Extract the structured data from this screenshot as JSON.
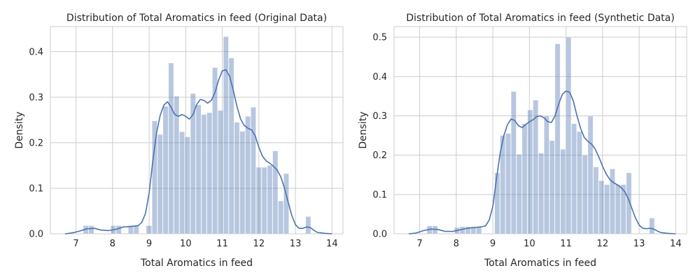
{
  "chart_data": [
    {
      "type": "bar",
      "title": "Distribution of Total Aromatics in feed (Original Data)",
      "xlabel": "Total Aromatics in feed",
      "ylabel": "Density",
      "xlim": [
        6.3,
        14.3
      ],
      "ylim": [
        0,
        0.455
      ],
      "xticks": [
        7,
        8,
        9,
        10,
        11,
        12,
        13,
        14
      ],
      "yticks": [
        0.0,
        0.1,
        0.2,
        0.3,
        0.4
      ],
      "ytick_labels": [
        "0.0",
        "0.1",
        "0.2",
        "0.3",
        "0.4"
      ],
      "grid": true,
      "bar_color": "#4c72b0",
      "bar_opacity": 0.4,
      "line_color": "#4c72b0",
      "bins": [
        {
          "x0": 7.2,
          "x1": 7.35,
          "density": 0.018
        },
        {
          "x0": 7.35,
          "x1": 7.5,
          "density": 0.018
        },
        {
          "x0": 7.95,
          "x1": 8.1,
          "density": 0.018
        },
        {
          "x0": 8.1,
          "x1": 8.25,
          "density": 0.018
        },
        {
          "x0": 8.43,
          "x1": 8.58,
          "density": 0.018
        },
        {
          "x0": 8.58,
          "x1": 8.73,
          "density": 0.018
        },
        {
          "x0": 8.92,
          "x1": 9.08,
          "density": 0.018
        },
        {
          "x0": 9.08,
          "x1": 9.23,
          "density": 0.248
        },
        {
          "x0": 9.23,
          "x1": 9.38,
          "density": 0.218
        },
        {
          "x0": 9.38,
          "x1": 9.53,
          "density": 0.28
        },
        {
          "x0": 9.53,
          "x1": 9.68,
          "density": 0.375
        },
        {
          "x0": 9.68,
          "x1": 9.83,
          "density": 0.302
        },
        {
          "x0": 9.83,
          "x1": 9.98,
          "density": 0.224
        },
        {
          "x0": 9.98,
          "x1": 10.13,
          "density": 0.213
        },
        {
          "x0": 10.13,
          "x1": 10.28,
          "density": 0.308
        },
        {
          "x0": 10.28,
          "x1": 10.43,
          "density": 0.283
        },
        {
          "x0": 10.43,
          "x1": 10.58,
          "density": 0.262
        },
        {
          "x0": 10.58,
          "x1": 10.73,
          "density": 0.266
        },
        {
          "x0": 10.73,
          "x1": 10.88,
          "density": 0.365
        },
        {
          "x0": 10.88,
          "x1": 11.03,
          "density": 0.271
        },
        {
          "x0": 11.03,
          "x1": 11.18,
          "density": 0.433
        },
        {
          "x0": 11.18,
          "x1": 11.33,
          "density": 0.386
        },
        {
          "x0": 11.33,
          "x1": 11.48,
          "density": 0.245
        },
        {
          "x0": 11.48,
          "x1": 11.63,
          "density": 0.225
        },
        {
          "x0": 11.63,
          "x1": 11.78,
          "density": 0.258
        },
        {
          "x0": 11.78,
          "x1": 11.93,
          "density": 0.278
        },
        {
          "x0": 11.93,
          "x1": 12.08,
          "density": 0.146
        },
        {
          "x0": 12.08,
          "x1": 12.23,
          "density": 0.146
        },
        {
          "x0": 12.23,
          "x1": 12.38,
          "density": 0.15
        },
        {
          "x0": 12.38,
          "x1": 12.53,
          "density": 0.182
        },
        {
          "x0": 12.53,
          "x1": 12.68,
          "density": 0.072
        },
        {
          "x0": 12.68,
          "x1": 12.83,
          "density": 0.132
        },
        {
          "x0": 13.28,
          "x1": 13.43,
          "density": 0.038
        }
      ],
      "kde": {
        "x": [
          6.7,
          6.9,
          7.1,
          7.3,
          7.5,
          7.7,
          7.9,
          8.1,
          8.3,
          8.5,
          8.7,
          8.8,
          8.9,
          9.0,
          9.1,
          9.2,
          9.3,
          9.4,
          9.5,
          9.6,
          9.7,
          9.8,
          9.9,
          10.0,
          10.1,
          10.2,
          10.3,
          10.4,
          10.5,
          10.6,
          10.7,
          10.8,
          10.9,
          11.0,
          11.1,
          11.2,
          11.3,
          11.4,
          11.5,
          11.6,
          11.7,
          11.8,
          11.9,
          12.0,
          12.1,
          12.2,
          12.3,
          12.4,
          12.5,
          12.6,
          12.7,
          12.8,
          12.9,
          13.0,
          13.1,
          13.2,
          13.3,
          13.4,
          13.5,
          13.6,
          13.8,
          14.0
        ],
        "y": [
          0.0,
          0.002,
          0.006,
          0.011,
          0.012,
          0.008,
          0.007,
          0.01,
          0.015,
          0.016,
          0.018,
          0.025,
          0.045,
          0.09,
          0.16,
          0.22,
          0.26,
          0.282,
          0.29,
          0.278,
          0.262,
          0.258,
          0.262,
          0.258,
          0.252,
          0.262,
          0.284,
          0.295,
          0.293,
          0.287,
          0.293,
          0.31,
          0.338,
          0.358,
          0.36,
          0.346,
          0.315,
          0.28,
          0.252,
          0.238,
          0.232,
          0.228,
          0.215,
          0.19,
          0.17,
          0.16,
          0.155,
          0.148,
          0.14,
          0.125,
          0.1,
          0.07,
          0.04,
          0.02,
          0.012,
          0.012,
          0.015,
          0.014,
          0.008,
          0.003,
          0.001,
          0.0
        ]
      }
    },
    {
      "type": "bar",
      "title": "Distribution of Total Aromatics in feed (Synthetic Data)",
      "xlabel": "Total Aromatics in feed",
      "ylabel": "Density",
      "xlim": [
        6.3,
        14.3
      ],
      "ylim": [
        0,
        0.527
      ],
      "xticks": [
        7,
        8,
        9,
        10,
        11,
        12,
        13,
        14
      ],
      "yticks": [
        0.0,
        0.1,
        0.2,
        0.3,
        0.4,
        0.5
      ],
      "ytick_labels": [
        "0.0",
        "0.1",
        "0.2",
        "0.3",
        "0.4",
        "0.5"
      ],
      "grid": true,
      "bar_color": "#4c72b0",
      "bar_opacity": 0.4,
      "line_color": "#4c72b0",
      "bins": [
        {
          "x0": 7.2,
          "x1": 7.35,
          "density": 0.02
        },
        {
          "x0": 7.35,
          "x1": 7.5,
          "density": 0.02
        },
        {
          "x0": 7.95,
          "x1": 8.1,
          "density": 0.016
        },
        {
          "x0": 8.1,
          "x1": 8.25,
          "density": 0.018
        },
        {
          "x0": 8.25,
          "x1": 8.4,
          "density": 0.018
        },
        {
          "x0": 8.4,
          "x1": 8.55,
          "density": 0.018
        },
        {
          "x0": 8.55,
          "x1": 8.7,
          "density": 0.018
        },
        {
          "x0": 9.05,
          "x1": 9.2,
          "density": 0.155
        },
        {
          "x0": 9.2,
          "x1": 9.35,
          "density": 0.25
        },
        {
          "x0": 9.35,
          "x1": 9.5,
          "density": 0.255
        },
        {
          "x0": 9.5,
          "x1": 9.65,
          "density": 0.362
        },
        {
          "x0": 9.65,
          "x1": 9.8,
          "density": 0.202
        },
        {
          "x0": 9.8,
          "x1": 9.95,
          "density": 0.28
        },
        {
          "x0": 9.95,
          "x1": 10.1,
          "density": 0.315
        },
        {
          "x0": 10.1,
          "x1": 10.25,
          "density": 0.34
        },
        {
          "x0": 10.25,
          "x1": 10.4,
          "density": 0.205
        },
        {
          "x0": 10.4,
          "x1": 10.55,
          "density": 0.3
        },
        {
          "x0": 10.55,
          "x1": 10.7,
          "density": 0.237
        },
        {
          "x0": 10.7,
          "x1": 10.85,
          "density": 0.483
        },
        {
          "x0": 10.85,
          "x1": 11.0,
          "density": 0.215
        },
        {
          "x0": 11.0,
          "x1": 11.15,
          "density": 0.5
        },
        {
          "x0": 11.15,
          "x1": 11.3,
          "density": 0.28
        },
        {
          "x0": 11.3,
          "x1": 11.45,
          "density": 0.26
        },
        {
          "x0": 11.45,
          "x1": 11.6,
          "density": 0.2
        },
        {
          "x0": 11.6,
          "x1": 11.75,
          "density": 0.299
        },
        {
          "x0": 11.75,
          "x1": 11.9,
          "density": 0.17
        },
        {
          "x0": 11.9,
          "x1": 12.05,
          "density": 0.135
        },
        {
          "x0": 12.05,
          "x1": 12.2,
          "density": 0.125
        },
        {
          "x0": 12.2,
          "x1": 12.35,
          "density": 0.165
        },
        {
          "x0": 12.35,
          "x1": 12.5,
          "density": 0.125
        },
        {
          "x0": 12.5,
          "x1": 12.65,
          "density": 0.125
        },
        {
          "x0": 12.65,
          "x1": 12.8,
          "density": 0.155
        },
        {
          "x0": 13.28,
          "x1": 13.43,
          "density": 0.04
        }
      ],
      "kde": {
        "x": [
          6.7,
          6.9,
          7.1,
          7.3,
          7.5,
          7.7,
          7.9,
          8.1,
          8.3,
          8.5,
          8.7,
          8.8,
          8.9,
          9.0,
          9.1,
          9.2,
          9.3,
          9.4,
          9.5,
          9.6,
          9.7,
          9.8,
          9.9,
          10.0,
          10.1,
          10.2,
          10.3,
          10.4,
          10.5,
          10.6,
          10.7,
          10.8,
          10.9,
          11.0,
          11.1,
          11.2,
          11.3,
          11.4,
          11.5,
          11.6,
          11.7,
          11.8,
          11.9,
          12.0,
          12.1,
          12.2,
          12.3,
          12.4,
          12.5,
          12.6,
          12.7,
          12.8,
          12.9,
          13.0,
          13.1,
          13.2,
          13.3,
          13.4,
          13.5,
          13.6,
          13.8,
          14.0
        ],
        "y": [
          0.0,
          0.002,
          0.008,
          0.012,
          0.011,
          0.006,
          0.006,
          0.01,
          0.014,
          0.016,
          0.018,
          0.02,
          0.035,
          0.07,
          0.14,
          0.205,
          0.25,
          0.278,
          0.292,
          0.288,
          0.275,
          0.27,
          0.278,
          0.285,
          0.29,
          0.298,
          0.3,
          0.295,
          0.285,
          0.283,
          0.3,
          0.33,
          0.355,
          0.363,
          0.36,
          0.338,
          0.3,
          0.268,
          0.245,
          0.235,
          0.228,
          0.215,
          0.195,
          0.172,
          0.152,
          0.138,
          0.13,
          0.125,
          0.118,
          0.108,
          0.09,
          0.065,
          0.04,
          0.022,
          0.014,
          0.013,
          0.014,
          0.012,
          0.007,
          0.003,
          0.001,
          0.0
        ]
      }
    }
  ]
}
